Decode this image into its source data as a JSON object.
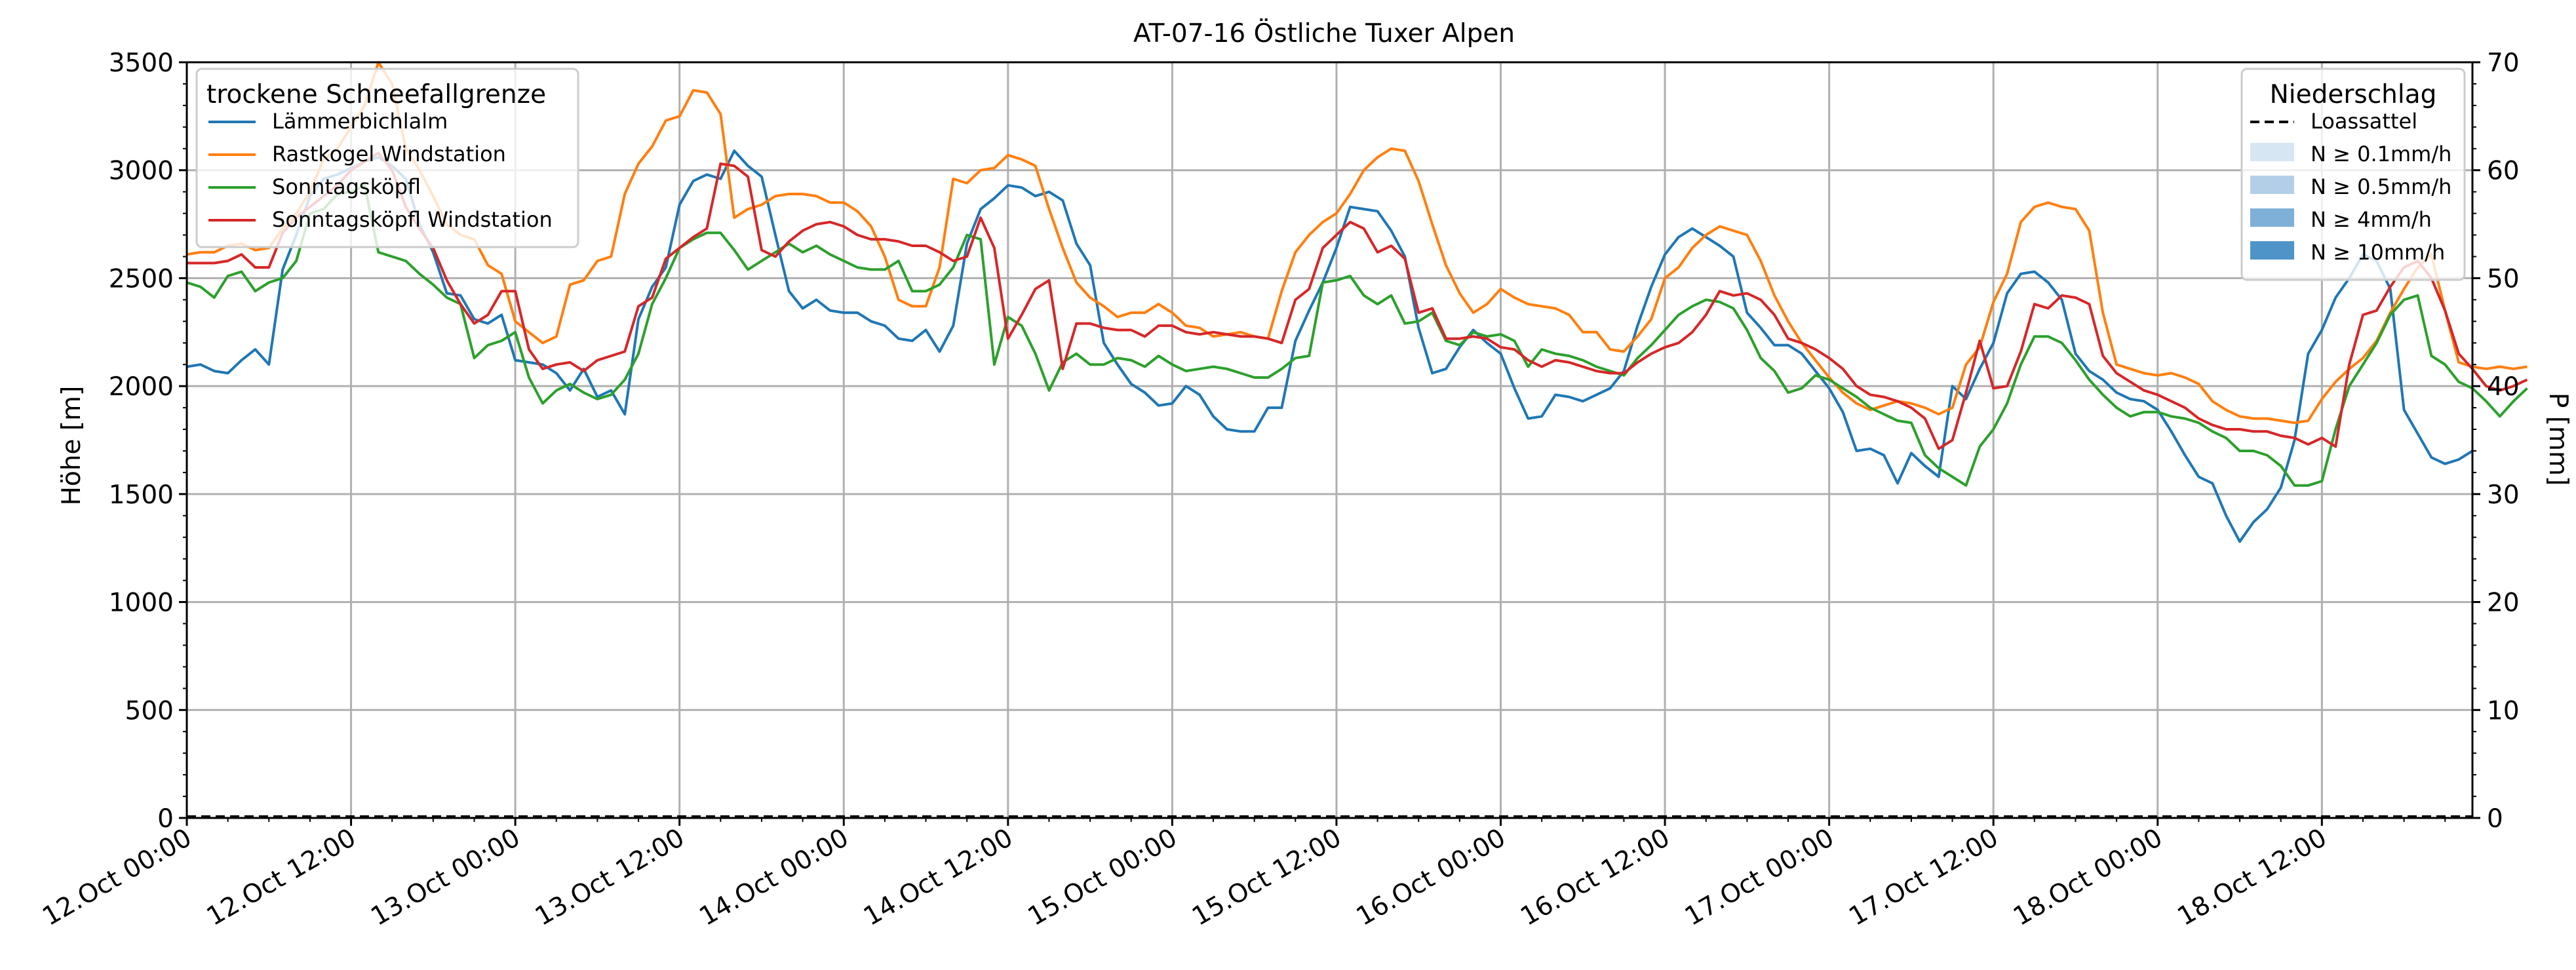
{
  "chart_data": {
    "type": "line",
    "title": "AT-07-16 Östliche Tuxer Alpen",
    "ylabel": "Höhe [m]",
    "y2label": "P [mm]",
    "ylim": [
      0,
      3500
    ],
    "y2lim": [
      0,
      70
    ],
    "yticks": [
      "0",
      "500",
      "1000",
      "1500",
      "2000",
      "2500",
      "3000",
      "3500"
    ],
    "y2ticks": [
      "0",
      "10",
      "20",
      "30",
      "40",
      "50",
      "60",
      "70"
    ],
    "x_start": "12.Oct 00:00",
    "x_end_hours": 167,
    "x_step_hours": 1,
    "xticks": [
      "12.Oct 00:00",
      "12.Oct 12:00",
      "13.Oct 00:00",
      "13.Oct 12:00",
      "14.Oct 00:00",
      "14.Oct 12:00",
      "15.Oct 00:00",
      "15.Oct 12:00",
      "16.Oct 00:00",
      "16.Oct 12:00",
      "17.Oct 00:00",
      "17.Oct 12:00",
      "18.Oct 00:00",
      "18.Oct 12:00"
    ],
    "grid": true,
    "legend_left": {
      "title": "trockene Schneefallgrenze",
      "position": "top-left"
    },
    "legend_right": {
      "title": "Niederschlag",
      "position": "top-right",
      "items": [
        {
          "label": "Loassattel",
          "style": "dashed",
          "color": "#000000"
        },
        {
          "label": "N ≥ 0.1mm/h",
          "color": "#d6e6f3"
        },
        {
          "label": "N ≥ 0.5mm/h",
          "color": "#b3cfe8"
        },
        {
          "label": "N ≥ 4mm/h",
          "color": "#7fb0d8"
        },
        {
          "label": "N ≥ 10mm/h",
          "color": "#4f94c8"
        }
      ]
    },
    "precipitation": {
      "name": "Loassattel",
      "values_mm": [
        0
      ]
    },
    "series": [
      {
        "name": "Lämmerbichlalm",
        "color": "#1f77b4",
        "values": [
          2090,
          2100,
          2070,
          2060,
          2120,
          2170,
          2100,
          2540,
          2700,
          2880,
          2960,
          2980,
          3010,
          3040,
          3060,
          3020,
          2960,
          2750,
          2620,
          2430,
          2420,
          2310,
          2290,
          2330,
          2120,
          2110,
          2100,
          2060,
          1980,
          2080,
          1950,
          1980,
          1870,
          2310,
          2460,
          2550,
          2840,
          2950,
          2980,
          2960,
          3090,
          3020,
          2970,
          2700,
          2440,
          2360,
          2400,
          2350,
          2340,
          2340,
          2300,
          2280,
          2220,
          2210,
          2260,
          2160,
          2280,
          2660,
          2820,
          2870,
          2930,
          2920,
          2880,
          2900,
          2860,
          2660,
          2560,
          2200,
          2100,
          2010,
          1970,
          1910,
          1920,
          2000,
          1960,
          1860,
          1800,
          1790,
          1790,
          1900,
          1900,
          2210,
          2350,
          2480,
          2640,
          2830,
          2820,
          2810,
          2720,
          2600,
          2270,
          2060,
          2080,
          2180,
          2260,
          2200,
          2150,
          1990,
          1850,
          1860,
          1960,
          1950,
          1930,
          1960,
          1990,
          2070,
          2280,
          2460,
          2610,
          2690,
          2730,
          2690,
          2650,
          2600,
          2340,
          2270,
          2190,
          2190,
          2150,
          2070,
          1990,
          1880,
          1700,
          1710,
          1680,
          1550,
          1690,
          1630,
          1580,
          2000,
          1940,
          2080,
          2200,
          2430,
          2520,
          2530,
          2480,
          2400,
          2150,
          2070,
          2030,
          1970,
          1940,
          1930,
          1890,
          1790,
          1680,
          1580,
          1550,
          1400,
          1280,
          1370,
          1430,
          1530,
          1750,
          2150,
          2260,
          2410,
          2500,
          2610,
          2580,
          2450,
          1890,
          1780,
          1670,
          1640,
          1660,
          1700
        ]
      },
      {
        "name": "Rastkogel Windstation",
        "color": "#ff7f0e",
        "values": [
          2610,
          2620,
          2620,
          2650,
          2660,
          2630,
          2640,
          2730,
          2800,
          2900,
          3050,
          3100,
          3200,
          3300,
          3500,
          3400,
          3100,
          3000,
          2880,
          2750,
          2700,
          2680,
          2560,
          2520,
          2300,
          2250,
          2200,
          2230,
          2470,
          2490,
          2580,
          2600,
          2890,
          3030,
          3110,
          3230,
          3250,
          3370,
          3360,
          3260,
          2780,
          2820,
          2840,
          2880,
          2890,
          2890,
          2880,
          2850,
          2850,
          2810,
          2740,
          2600,
          2400,
          2370,
          2370,
          2550,
          2960,
          2940,
          3000,
          3010,
          3070,
          3050,
          3020,
          2820,
          2640,
          2480,
          2410,
          2370,
          2320,
          2340,
          2340,
          2380,
          2340,
          2280,
          2270,
          2230,
          2240,
          2250,
          2230,
          2220,
          2440,
          2620,
          2700,
          2760,
          2800,
          2890,
          3000,
          3060,
          3100,
          3090,
          2950,
          2750,
          2560,
          2430,
          2340,
          2380,
          2450,
          2410,
          2380,
          2370,
          2360,
          2330,
          2250,
          2250,
          2170,
          2160,
          2230,
          2310,
          2500,
          2550,
          2640,
          2700,
          2740,
          2720,
          2700,
          2580,
          2420,
          2300,
          2200,
          2120,
          2040,
          1970,
          1920,
          1890,
          1910,
          1930,
          1920,
          1900,
          1870,
          1900,
          2100,
          2180,
          2390,
          2520,
          2760,
          2830,
          2850,
          2830,
          2820,
          2720,
          2340,
          2100,
          2080,
          2060,
          2050,
          2060,
          2040,
          2010,
          1930,
          1890,
          1860,
          1850,
          1850,
          1840,
          1830,
          1840,
          1940,
          2020,
          2080,
          2130,
          2210,
          2340,
          2450,
          2550,
          2610,
          2350,
          2110,
          2090,
          2080,
          2090,
          2080,
          2090
        ]
      },
      {
        "name": "Sonntagsköpfl",
        "color": "#2ca02c",
        "values": [
          2480,
          2460,
          2410,
          2510,
          2530,
          2440,
          2480,
          2500,
          2580,
          2800,
          2820,
          2890,
          2900,
          2930,
          2620,
          2600,
          2580,
          2520,
          2470,
          2410,
          2380,
          2130,
          2190,
          2210,
          2250,
          2040,
          1920,
          1980,
          2010,
          1970,
          1940,
          1960,
          2030,
          2150,
          2380,
          2500,
          2640,
          2680,
          2710,
          2710,
          2630,
          2540,
          2580,
          2620,
          2660,
          2620,
          2650,
          2610,
          2580,
          2550,
          2540,
          2540,
          2580,
          2440,
          2440,
          2470,
          2550,
          2700,
          2680,
          2100,
          2320,
          2280,
          2150,
          1980,
          2110,
          2150,
          2100,
          2100,
          2130,
          2120,
          2090,
          2140,
          2100,
          2070,
          2080,
          2090,
          2080,
          2060,
          2040,
          2040,
          2080,
          2130,
          2140,
          2480,
          2490,
          2510,
          2420,
          2380,
          2420,
          2290,
          2300,
          2340,
          2210,
          2190,
          2250,
          2230,
          2240,
          2210,
          2090,
          2170,
          2150,
          2140,
          2120,
          2090,
          2070,
          2050,
          2130,
          2190,
          2260,
          2330,
          2370,
          2400,
          2390,
          2360,
          2260,
          2130,
          2070,
          1970,
          1990,
          2050,
          2030,
          1990,
          1950,
          1900,
          1870,
          1840,
          1830,
          1680,
          1620,
          1580,
          1540,
          1720,
          1800,
          1920,
          2100,
          2230,
          2230,
          2200,
          2120,
          2030,
          1960,
          1900,
          1860,
          1880,
          1880,
          1860,
          1850,
          1830,
          1790,
          1760,
          1700,
          1700,
          1680,
          1630,
          1540,
          1540,
          1560,
          1800,
          2000,
          2100,
          2200,
          2330,
          2400,
          2420,
          2140,
          2100,
          2020,
          1990,
          1930,
          1860,
          1930,
          1990
        ]
      },
      {
        "name": "Sonntagsköpfl Windstation",
        "color": "#d62728",
        "values": [
          2570,
          2570,
          2570,
          2580,
          2610,
          2550,
          2550,
          2710,
          2780,
          2830,
          2880,
          2930,
          3000,
          3040,
          3080,
          3000,
          2830,
          2730,
          2640,
          2490,
          2380,
          2290,
          2330,
          2440,
          2440,
          2170,
          2080,
          2100,
          2110,
          2070,
          2120,
          2140,
          2160,
          2370,
          2410,
          2590,
          2640,
          2690,
          2730,
          3030,
          3020,
          2970,
          2630,
          2600,
          2670,
          2720,
          2750,
          2760,
          2740,
          2700,
          2680,
          2680,
          2670,
          2650,
          2650,
          2620,
          2580,
          2600,
          2780,
          2640,
          2220,
          2330,
          2450,
          2490,
          2080,
          2290,
          2290,
          2270,
          2260,
          2260,
          2230,
          2280,
          2280,
          2250,
          2240,
          2250,
          2240,
          2230,
          2230,
          2220,
          2200,
          2400,
          2450,
          2640,
          2700,
          2760,
          2730,
          2620,
          2650,
          2590,
          2340,
          2360,
          2220,
          2220,
          2230,
          2220,
          2180,
          2170,
          2120,
          2090,
          2120,
          2110,
          2090,
          2070,
          2060,
          2060,
          2110,
          2150,
          2180,
          2200,
          2250,
          2330,
          2440,
          2420,
          2430,
          2400,
          2330,
          2220,
          2200,
          2170,
          2130,
          2080,
          2000,
          1960,
          1950,
          1930,
          1900,
          1850,
          1710,
          1750,
          1970,
          2210,
          1990,
          2000,
          2160,
          2380,
          2360,
          2420,
          2410,
          2380,
          2140,
          2060,
          2020,
          1980,
          1960,
          1930,
          1900,
          1850,
          1820,
          1800,
          1800,
          1790,
          1790,
          1770,
          1760,
          1730,
          1760,
          1720,
          2100,
          2330,
          2350,
          2460,
          2550,
          2580,
          2500,
          2350,
          2150,
          2080,
          2000,
          1980,
          2000,
          2030
        ]
      }
    ]
  }
}
